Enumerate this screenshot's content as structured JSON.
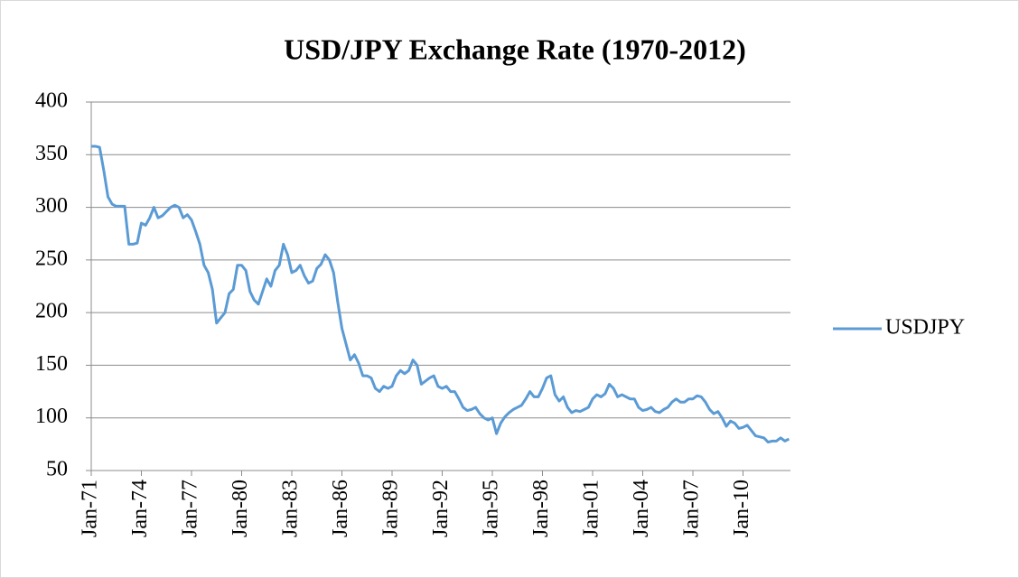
{
  "chart_data": {
    "type": "line",
    "title": "USD/JPY Exchange Rate (1970-2012)",
    "categories": [
      "Jan-71",
      null,
      null,
      null,
      null,
      null,
      null,
      null,
      null,
      null,
      null,
      null,
      "Jan-74",
      null,
      null,
      null,
      null,
      null,
      null,
      null,
      null,
      null,
      null,
      null,
      "Jan-77",
      null,
      null,
      null,
      null,
      null,
      null,
      null,
      null,
      null,
      null,
      null,
      "Jan-80",
      null,
      null,
      null,
      null,
      null,
      null,
      null,
      null,
      null,
      null,
      null,
      "Jan-83",
      null,
      null,
      null,
      null,
      null,
      null,
      null,
      null,
      null,
      null,
      null,
      "Jan-86",
      null,
      null,
      null,
      null,
      null,
      null,
      null,
      null,
      null,
      null,
      null,
      "Jan-89",
      null,
      null,
      null,
      null,
      null,
      null,
      null,
      null,
      null,
      null,
      null,
      "Jan-92",
      null,
      null,
      null,
      null,
      null,
      null,
      null,
      null,
      null,
      null,
      null,
      "Jan-95",
      null,
      null,
      null,
      null,
      null,
      null,
      null,
      null,
      null,
      null,
      null,
      "Jan-98",
      null,
      null,
      null,
      null,
      null,
      null,
      null,
      null,
      null,
      null,
      null,
      "Jan-01",
      null,
      null,
      null,
      null,
      null,
      null,
      null,
      null,
      null,
      null,
      null,
      "Jan-04",
      null,
      null,
      null,
      null,
      null,
      null,
      null,
      null,
      null,
      null,
      null,
      "Jan-07",
      null,
      null,
      null,
      null,
      null,
      null,
      null,
      null,
      null,
      null,
      null,
      "Jan-10",
      null,
      null,
      null,
      null,
      null,
      null,
      null,
      null,
      null,
      null,
      null
    ],
    "series": [
      {
        "name": "USDJPY",
        "color": "#5b9bd5",
        "values": [
          358,
          358,
          357,
          335,
          310,
          303,
          301,
          301,
          301,
          265,
          265,
          266,
          285,
          283,
          290,
          300,
          290,
          292,
          296,
          300,
          302,
          300,
          290,
          293,
          288,
          277,
          265,
          245,
          238,
          222,
          190,
          195,
          200,
          218,
          222,
          245,
          245,
          240,
          220,
          212,
          208,
          220,
          232,
          225,
          240,
          245,
          265,
          255,
          238,
          240,
          245,
          235,
          228,
          230,
          242,
          246,
          255,
          250,
          238,
          210,
          185,
          170,
          155,
          160,
          152,
          140,
          140,
          138,
          128,
          125,
          130,
          128,
          130,
          140,
          145,
          142,
          145,
          155,
          150,
          132,
          135,
          138,
          140,
          130,
          128,
          130,
          125,
          125,
          118,
          110,
          107,
          108,
          110,
          104,
          100,
          98,
          100,
          85,
          95,
          101,
          105,
          108,
          110,
          112,
          118,
          125,
          120,
          120,
          128,
          138,
          140,
          122,
          116,
          120,
          110,
          105,
          107,
          106,
          108,
          110,
          118,
          122,
          120,
          123,
          132,
          128,
          120,
          122,
          120,
          118,
          118,
          110,
          107,
          108,
          110,
          106,
          105,
          108,
          110,
          115,
          118,
          115,
          115,
          118,
          118,
          121,
          120,
          115,
          108,
          104,
          106,
          100,
          92,
          97,
          95,
          90,
          91,
          93,
          88,
          83,
          82,
          81,
          77,
          78,
          78,
          81,
          78,
          80
        ]
      }
    ],
    "ylim": [
      50,
      400
    ],
    "yticks": [
      50,
      100,
      150,
      200,
      250,
      300,
      350,
      400
    ],
    "grid": true,
    "legend": "right"
  }
}
